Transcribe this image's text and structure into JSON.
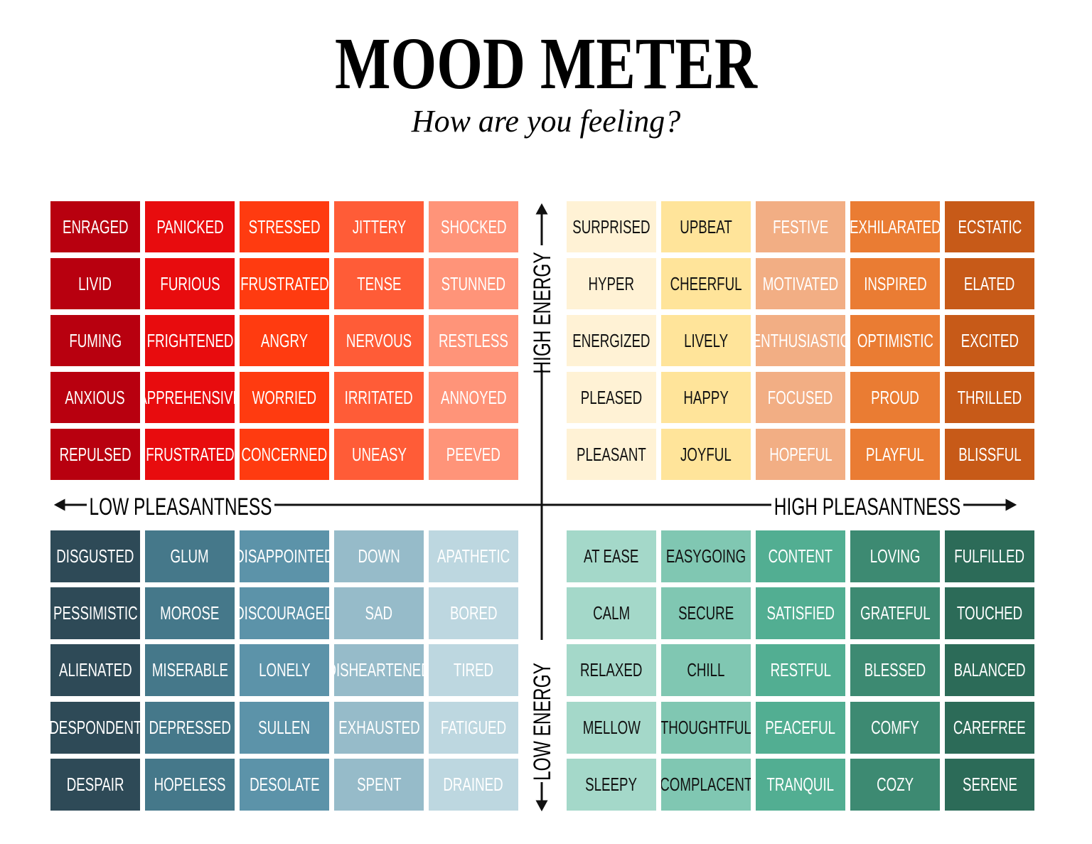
{
  "title": "MOOD METER",
  "subtitle": "How are you feeling?",
  "axes": {
    "high_energy": "HIGH ENERGY",
    "low_energy": "LOW ENERGY",
    "low_pleasantness": "LOW PLEASANTNESS",
    "high_pleasantness": "HIGH PLEASANTNESS"
  },
  "quadrants": {
    "top_left": [
      [
        "ENRAGED",
        "PANICKED",
        "STRESSED",
        "JITTERY",
        "SHOCKED"
      ],
      [
        "LIVID",
        "FURIOUS",
        "FRUSTRATED",
        "TENSE",
        "STUNNED"
      ],
      [
        "FUMING",
        "FRIGHTENED",
        "ANGRY",
        "NERVOUS",
        "RESTLESS"
      ],
      [
        "ANXIOUS",
        "APPREHENSIVE",
        "WORRIED",
        "IRRITATED",
        "ANNOYED"
      ],
      [
        "REPULSED",
        "FRUSTRATED",
        "CONCERNED",
        "UNEASY",
        "PEEVED"
      ]
    ],
    "top_right": [
      [
        "SURPRISED",
        "UPBEAT",
        "FESTIVE",
        "EXHILARATED",
        "ECSTATIC"
      ],
      [
        "HYPER",
        "CHEERFUL",
        "MOTIVATED",
        "INSPIRED",
        "ELATED"
      ],
      [
        "ENERGIZED",
        "LIVELY",
        "ENTHUSIASTIC",
        "OPTIMISTIC",
        "EXCITED"
      ],
      [
        "PLEASED",
        "HAPPY",
        "FOCUSED",
        "PROUD",
        "THRILLED"
      ],
      [
        "PLEASANT",
        "JOYFUL",
        "HOPEFUL",
        "PLAYFUL",
        "BLISSFUL"
      ]
    ],
    "bottom_left": [
      [
        "DISGUSTED",
        "GLUM",
        "DISAPPOINTED",
        "DOWN",
        "APATHETIC"
      ],
      [
        "PESSIMISTIC",
        "MOROSE",
        "DISCOURAGED",
        "SAD",
        "BORED"
      ],
      [
        "ALIENATED",
        "MISERABLE",
        "LONELY",
        "DISHEARTENED",
        "TIRED"
      ],
      [
        "DESPONDENT",
        "DEPRESSED",
        "SULLEN",
        "EXHAUSTED",
        "FATIGUED"
      ],
      [
        "DESPAIR",
        "HOPELESS",
        "DESOLATE",
        "SPENT",
        "DRAINED"
      ]
    ],
    "bottom_right": [
      [
        "AT EASE",
        "EASYGOING",
        "CONTENT",
        "LOVING",
        "FULFILLED"
      ],
      [
        "CALM",
        "SECURE",
        "SATISFIED",
        "GRATEFUL",
        "TOUCHED"
      ],
      [
        "RELAXED",
        "CHILL",
        "RESTFUL",
        "BLESSED",
        "BALANCED"
      ],
      [
        "MELLOW",
        "THOUGHTFUL",
        "PEACEFUL",
        "COMFY",
        "CAREFREE"
      ],
      [
        "SLEEPY",
        "COMPLACENT",
        "TRANQUIL",
        "COZY",
        "SERENE"
      ]
    ]
  }
}
